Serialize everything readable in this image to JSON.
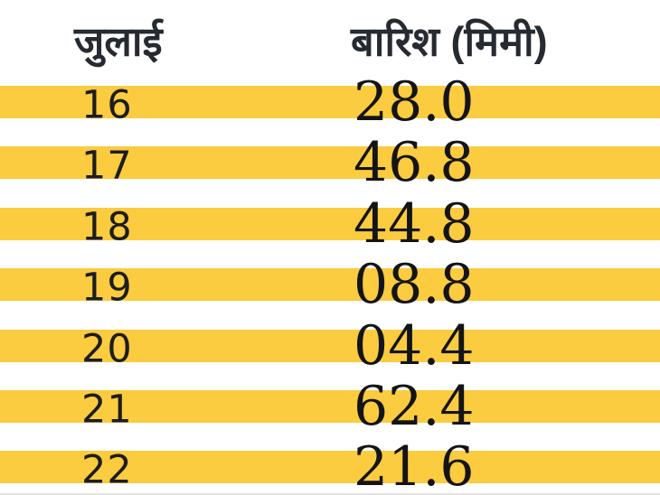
{
  "header": {
    "col_date": "जुलाई",
    "col_rain": "बारिश (मिमी)"
  },
  "table": {
    "rows": [
      {
        "date": "16",
        "rain": "28.0"
      },
      {
        "date": "17",
        "rain": "46.8"
      },
      {
        "date": "18",
        "rain": "44.8"
      },
      {
        "date": "19",
        "rain": "08.8"
      },
      {
        "date": "20",
        "rain": "04.4"
      },
      {
        "date": "21",
        "rain": "62.4"
      },
      {
        "date": "22",
        "rain": "21.6"
      }
    ]
  },
  "colors": {
    "stripe_yellow": "#fbcb40",
    "header_text": "#262a31",
    "date_text": "#1d1d20",
    "value_text": "#141416",
    "bottom_rule": "#e3e3e3",
    "background": "#ffffff"
  },
  "chart_data": {
    "type": "table",
    "title": "",
    "columns": [
      "जुलाई",
      "बारिश (मिमी)"
    ],
    "categories": [
      "16",
      "17",
      "18",
      "19",
      "20",
      "21",
      "22"
    ],
    "values": [
      28.0,
      46.8,
      44.8,
      8.8,
      4.4,
      62.4,
      21.6
    ],
    "rows": [
      [
        "16",
        "28.0"
      ],
      [
        "17",
        "46.8"
      ],
      [
        "18",
        "44.8"
      ],
      [
        "19",
        "08.8"
      ],
      [
        "20",
        "04.4"
      ],
      [
        "21",
        "62.4"
      ],
      [
        "22",
        "21.6"
      ]
    ],
    "unit": "मिमी",
    "layout": {
      "striped": true,
      "stripe_color": "#fbcb40",
      "grid": false
    }
  }
}
